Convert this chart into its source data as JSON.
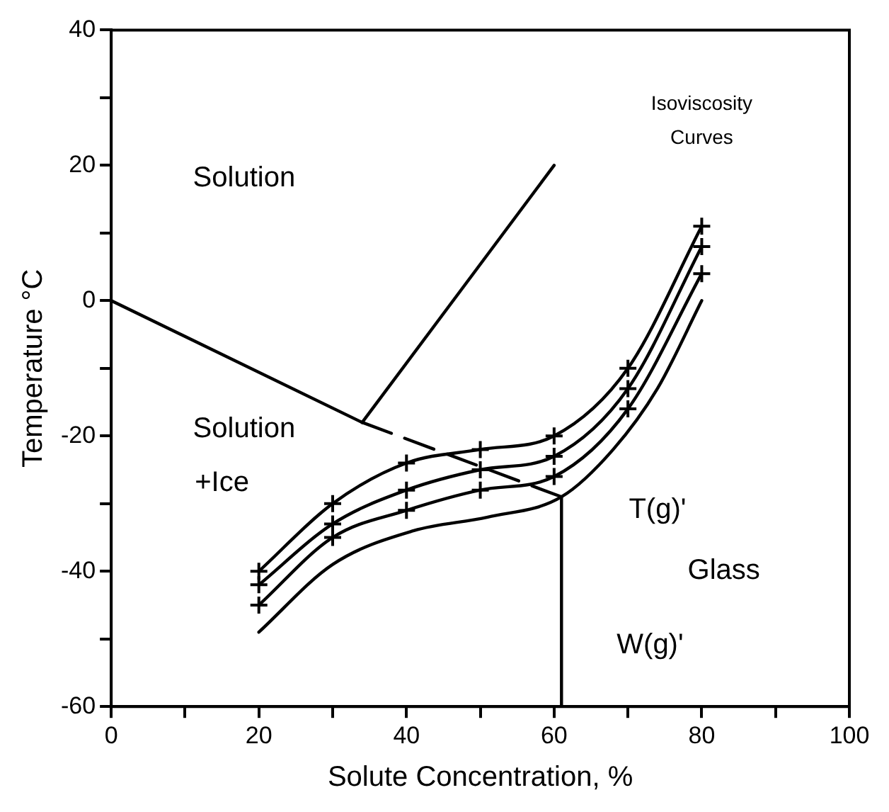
{
  "chart_data": {
    "type": "line",
    "xlabel": "Solute Concentration, %",
    "ylabel": "Temperature °C",
    "xlim": [
      0,
      100
    ],
    "ylim": [
      -60,
      40
    ],
    "xticks": [
      0,
      {
        "value": 10,
        "label": null
      },
      20,
      {
        "value": 30,
        "label": null
      },
      40,
      {
        "value": 50,
        "label": null
      },
      60,
      {
        "value": 70,
        "label": null
      },
      80,
      {
        "value": 90,
        "label": null
      },
      100
    ],
    "yticks": [
      -60,
      {
        "value": -50,
        "label": null
      },
      -40,
      {
        "value": -30,
        "label": null
      },
      -20,
      {
        "value": -10,
        "label": null
      },
      0,
      {
        "value": 10,
        "label": null
      },
      20,
      {
        "value": 30,
        "label": null
      },
      40
    ],
    "grid": false,
    "legend": false,
    "series": [
      {
        "color": "#000000",
        "x": [
          0,
          34
        ],
        "values": [
          0,
          -18
        ],
        "marker": "none",
        "line_style": "solid"
      },
      {
        "color": "#000000",
        "x": [
          34,
          60
        ],
        "values": [
          -18,
          20
        ],
        "marker": "none",
        "line_style": "solid"
      },
      {
        "color": "#000000",
        "x": [
          34,
          61
        ],
        "values": [
          -18,
          -29
        ],
        "marker": "none",
        "line_style": "dashed"
      },
      {
        "color": "#000000",
        "x": [
          61,
          61
        ],
        "values": [
          -29,
          -60
        ],
        "marker": "none",
        "line_style": "solid"
      },
      {
        "color": "#000000",
        "x": [
          20,
          30,
          40,
          50,
          60,
          70,
          80
        ],
        "values": [
          -40,
          -30,
          -24,
          -22,
          -20,
          -10,
          11
        ],
        "marker": "cross",
        "line_style": "solid"
      },
      {
        "color": "#000000",
        "x": [
          20,
          30,
          40,
          50,
          60,
          70,
          80
        ],
        "values": [
          -42,
          -33,
          -28,
          -25,
          -23,
          -13,
          8
        ],
        "marker": "cross",
        "line_style": "solid"
      },
      {
        "color": "#000000",
        "x": [
          20,
          30,
          40,
          50,
          60,
          70,
          80
        ],
        "values": [
          -45,
          -35,
          -31,
          -28,
          -26,
          -16,
          4
        ],
        "marker": "cross",
        "line_style": "solid"
      },
      {
        "color": "#000000",
        "x": [
          20,
          30,
          41,
          51,
          61,
          68,
          74,
          80
        ],
        "values": [
          -49,
          -39,
          -34,
          -32,
          -29,
          -22,
          -13,
          0
        ],
        "marker": "none",
        "line_style": "solid"
      }
    ],
    "annotations": [
      "Solution",
      "Solution",
      "+Ice",
      "Isoviscosity",
      "Curves",
      "T(g)'",
      "Glass",
      "W(g)'"
    ]
  }
}
